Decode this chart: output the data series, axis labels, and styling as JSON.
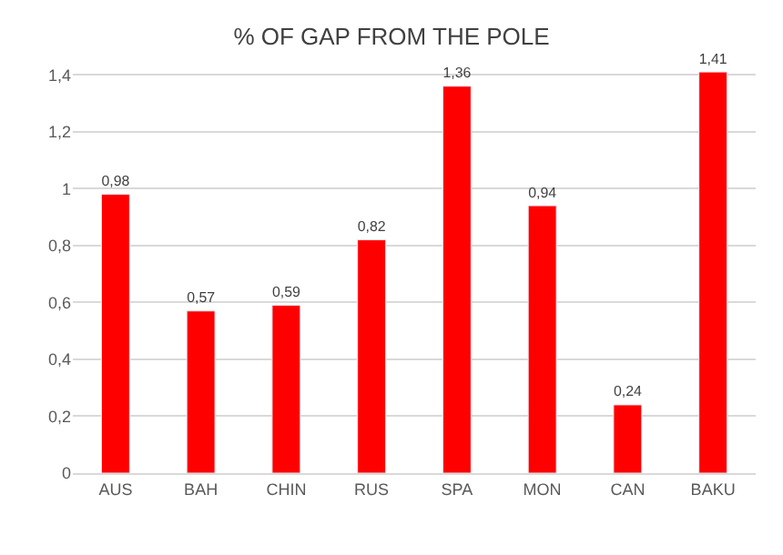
{
  "chart_data": {
    "type": "bar",
    "title": "% OF GAP FROM THE POLE",
    "categories": [
      "AUS",
      "BAH",
      "CHIN",
      "RUS",
      "SPA",
      "MON",
      "CAN",
      "BAKU"
    ],
    "values": [
      0.98,
      0.57,
      0.59,
      0.82,
      1.36,
      0.94,
      0.24,
      1.41
    ],
    "value_labels": [
      "0,98",
      "0,57",
      "0,59",
      "0,82",
      "1,36",
      "0,94",
      "0,24",
      "1,41"
    ],
    "color": "#ff0000",
    "ylim": [
      0,
      1.42
    ],
    "yticks": [
      0,
      {
        "value": 0.2,
        "label": "0,2"
      },
      {
        "value": 0.4,
        "label": "0,4"
      },
      {
        "value": 0.6,
        "label": "0,6"
      },
      {
        "value": 0.8,
        "label": "0,8"
      },
      1,
      {
        "value": 1.2,
        "label": "1,2"
      },
      {
        "value": 1.4,
        "label": "1,4"
      }
    ],
    "grid": "y"
  }
}
